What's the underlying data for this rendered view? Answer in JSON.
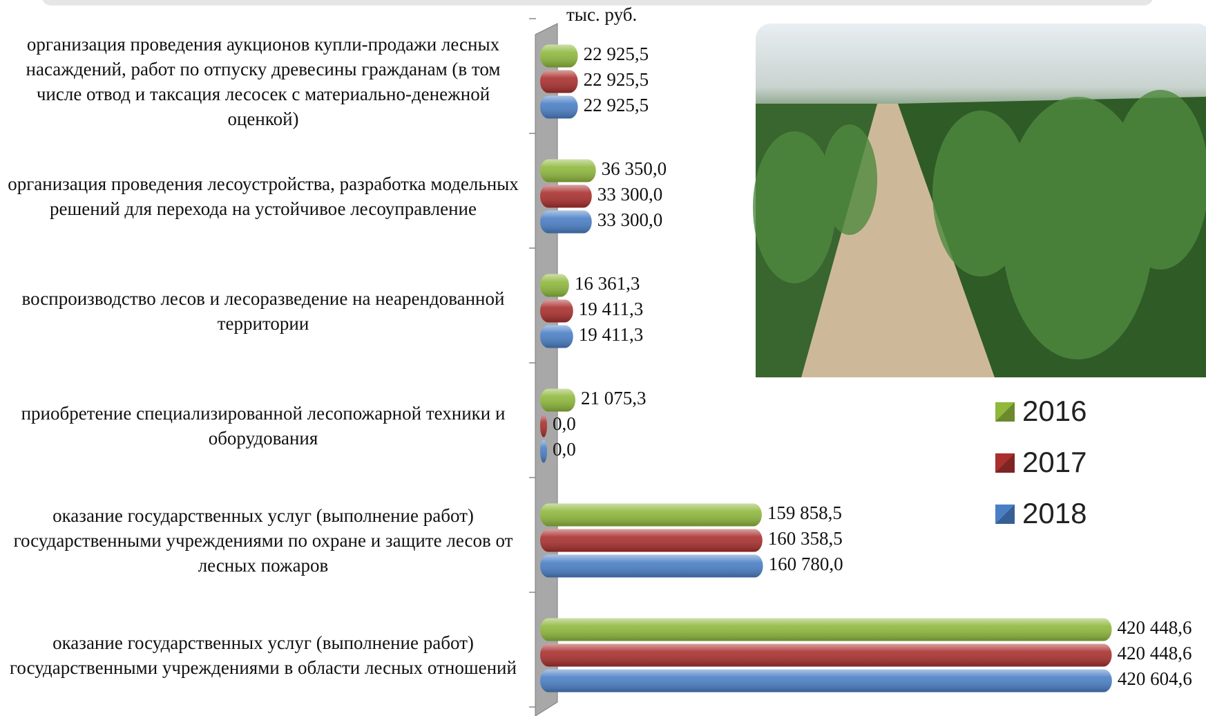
{
  "chart_data": {
    "type": "bar",
    "orientation": "horizontal",
    "x_label": "тыс. руб.",
    "categories": [
      "организация проведения аукционов купли-продажи лесных насаждений, работ по отпуску древесины гражданам (в том числе отвод и таксация лесосек с материально-денежной оценкой)",
      "организация проведения лесоустройства, разработка модельных решений для перехода на устойчивое лесоуправление",
      "воспроизводство лесов и лесоразведение на неарендованной территории",
      "приобретение специализированной лесопожарной техники и оборудования",
      "оказание государственных услуг (выполнение работ) государственными учреждениями по охране и защите лесов от лесных пожаров",
      "оказание государственных услуг (выполнение работ) государственными учреждениями в области лесных отношений"
    ],
    "series": [
      {
        "name": "2016",
        "color": "#8fb83c",
        "values": [
          22925.5,
          36350.0,
          16361.3,
          21075.3,
          159858.5,
          420448.6
        ],
        "value_labels": [
          "22 925,5",
          "36 350,0",
          "16 361,3",
          "21 075,3",
          "159 858,5",
          "420 448,6"
        ]
      },
      {
        "name": "2017",
        "color": "#a9302e",
        "values": [
          22925.5,
          33300.0,
          19411.3,
          0.0,
          160358.5,
          420448.6
        ],
        "value_labels": [
          "22 925,5",
          "33 300,0",
          "19 411,3",
          "0,0",
          "160 358,5",
          "420 448,6"
        ]
      },
      {
        "name": "2018",
        "color": "#4a7fc6",
        "values": [
          22925.5,
          33300.0,
          19411.3,
          0.0,
          160780.0,
          420604.6
        ],
        "value_labels": [
          "22 925,5",
          "33 300,0",
          "19 411,3",
          "0,0",
          "160 780,0",
          "420 604,6"
        ]
      }
    ],
    "xlim": [
      0,
      450000
    ]
  }
}
